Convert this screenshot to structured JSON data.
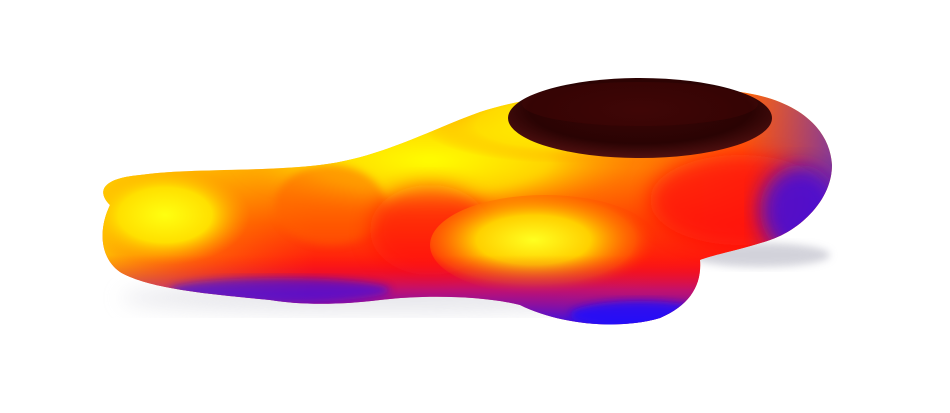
{
  "scene": {
    "subject": "heatmap-colored-3d-blob-surface",
    "background_color": "#ffffff",
    "colormap": {
      "cold": "#1a10ff",
      "mid_low": "#ff1010",
      "mid": "#ff5a00",
      "mid_high": "#ff9a00",
      "hot": "#ffee00",
      "dark_top": "#2a0404"
    },
    "shadow_color": "#cfcfd6"
  }
}
